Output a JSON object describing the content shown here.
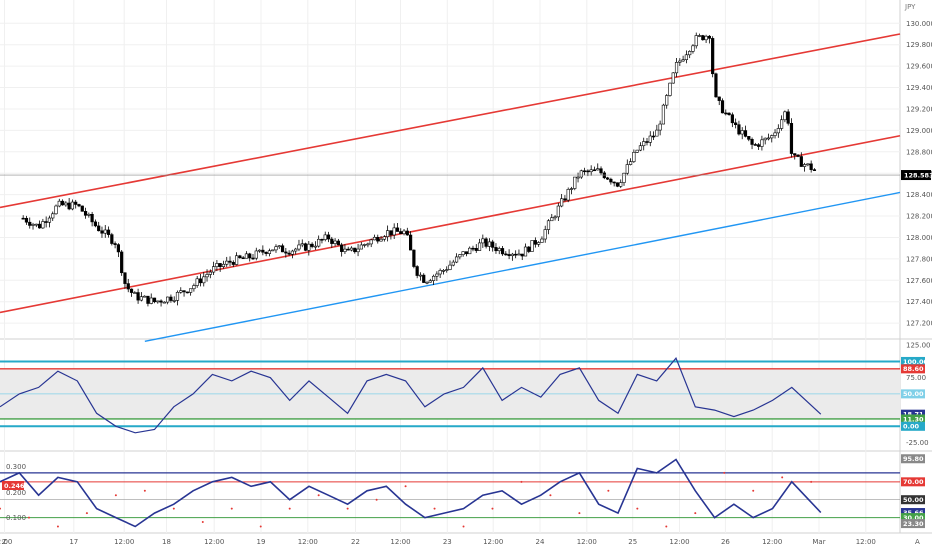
{
  "chart_data": {
    "type": "candlestick",
    "currency": "JPY",
    "colors": {
      "background": "#ffffff",
      "pane_bg": "#ebebeb",
      "candle_up": "#ffffff",
      "candle_down": "#000000",
      "wick": "#000000",
      "channel": "#e53935",
      "support": "#2196f3",
      "osc_line": "#283593",
      "band_cyan": "#26a9c8",
      "band_red": "#e53935",
      "band_green": "#43a047",
      "band_lightblue": "#80d0e8",
      "macd_dots": "#e53935",
      "grid": "#f0f0f0",
      "axis_text": "#555555",
      "price_badge": "#000000"
    },
    "price_pane": {
      "y_ticks": [
        "130.000",
        "129.800",
        "129.600",
        "129.400",
        "129.200",
        "129.000",
        "128.800",
        "128.600",
        "128.400",
        "128.200",
        "128.000",
        "127.800",
        "127.600",
        "127.400",
        "127.200"
      ],
      "ylim": [
        127.08,
        130.18
      ],
      "last_price": "128.583",
      "close_path": [
        [
          0,
          128.08
        ],
        [
          20,
          128.2
        ],
        [
          40,
          128.1
        ],
        [
          60,
          128.3
        ],
        [
          80,
          128.3
        ],
        [
          100,
          128.1
        ],
        [
          120,
          127.95
        ],
        [
          130,
          127.55
        ],
        [
          140,
          127.45
        ],
        [
          160,
          127.4
        ],
        [
          180,
          127.45
        ],
        [
          200,
          127.55
        ],
        [
          220,
          127.7
        ],
        [
          240,
          127.78
        ],
        [
          260,
          127.82
        ],
        [
          280,
          127.9
        ],
        [
          300,
          127.88
        ],
        [
          320,
          127.92
        ],
        [
          340,
          128.0
        ],
        [
          360,
          127.85
        ],
        [
          380,
          127.95
        ],
        [
          400,
          128.05
        ],
        [
          420,
          128.05
        ],
        [
          430,
          127.7
        ],
        [
          440,
          127.6
        ],
        [
          460,
          127.7
        ],
        [
          480,
          127.85
        ],
        [
          500,
          127.95
        ],
        [
          520,
          127.88
        ],
        [
          540,
          127.85
        ],
        [
          560,
          128.0
        ],
        [
          580,
          128.3
        ],
        [
          600,
          128.6
        ],
        [
          620,
          128.62
        ],
        [
          640,
          128.5
        ],
        [
          660,
          128.82
        ],
        [
          680,
          128.98
        ],
        [
          700,
          129.6
        ],
        [
          720,
          129.85
        ],
        [
          735,
          129.9
        ],
        [
          740,
          129.3
        ],
        [
          760,
          129.05
        ],
        [
          780,
          128.85
        ],
        [
          800,
          128.95
        ],
        [
          815,
          129.2
        ],
        [
          820,
          128.75
        ],
        [
          840,
          128.65
        ],
        [
          850,
          128.58
        ]
      ],
      "channel_upper": [
        [
          0,
          128.28
        ],
        [
          932,
          129.9
        ]
      ],
      "channel_lower": [
        [
          0,
          127.3
        ],
        [
          932,
          128.95
        ]
      ],
      "support_line": [
        [
          150,
          127.03
        ],
        [
          932,
          128.42
        ]
      ]
    },
    "rsi_pane": {
      "y_ticks": [
        "125.00",
        "75.00",
        "-25.00"
      ],
      "ylim": [
        -35,
        130
      ],
      "levels": {
        "upper_cyan": 100.0,
        "upper_red": 88.6,
        "mid": 50.0,
        "lower_green": 11.3,
        "lower_cyan": 0.0
      },
      "badges": [
        {
          "label": "100.00",
          "value": 100.0
        },
        {
          "label": "88.60",
          "value": 88.6
        },
        {
          "label": "50.00",
          "value": 50.0
        },
        {
          "label": "18.71",
          "value": 18.71
        },
        {
          "label": "11.30",
          "value": 11.3
        },
        {
          "label": "0.00",
          "value": 0.0
        }
      ],
      "line": [
        [
          0,
          30
        ],
        [
          20,
          50
        ],
        [
          40,
          60
        ],
        [
          60,
          85
        ],
        [
          80,
          70
        ],
        [
          100,
          20
        ],
        [
          120,
          0
        ],
        [
          140,
          -10
        ],
        [
          160,
          -5
        ],
        [
          180,
          30
        ],
        [
          200,
          50
        ],
        [
          220,
          80
        ],
        [
          240,
          70
        ],
        [
          260,
          85
        ],
        [
          280,
          75
        ],
        [
          300,
          40
        ],
        [
          320,
          70
        ],
        [
          340,
          45
        ],
        [
          360,
          20
        ],
        [
          380,
          70
        ],
        [
          400,
          80
        ],
        [
          420,
          70
        ],
        [
          440,
          30
        ],
        [
          460,
          50
        ],
        [
          480,
          60
        ],
        [
          500,
          90
        ],
        [
          520,
          40
        ],
        [
          540,
          60
        ],
        [
          560,
          45
        ],
        [
          580,
          80
        ],
        [
          600,
          90
        ],
        [
          620,
          40
        ],
        [
          640,
          20
        ],
        [
          660,
          80
        ],
        [
          680,
          70
        ],
        [
          700,
          105
        ],
        [
          720,
          30
        ],
        [
          740,
          25
        ],
        [
          760,
          15
        ],
        [
          780,
          25
        ],
        [
          800,
          40
        ],
        [
          820,
          60
        ],
        [
          850,
          18.7
        ]
      ]
    },
    "macd_pane": {
      "y_ticks": [
        "0.300",
        "0.200",
        "0.100"
      ],
      "ylim": [
        0.0,
        0.36
      ],
      "value": "0.246",
      "levels": {
        "upper_red": 70.0,
        "blue": 80.0,
        "gray": 50.0,
        "green": 30.0
      },
      "badges": [
        {
          "label": "95.80",
          "value": 95.8
        },
        {
          "label": "70.00",
          "value": 70.0
        },
        {
          "label": "50.00",
          "value": 50.0
        },
        {
          "label": "35.66",
          "value": 35.66
        },
        {
          "label": "30.00",
          "value": 30.0
        },
        {
          "label": "23.30",
          "value": 23.3
        }
      ],
      "line": [
        [
          0,
          70
        ],
        [
          20,
          80
        ],
        [
          40,
          55
        ],
        [
          60,
          75
        ],
        [
          80,
          70
        ],
        [
          100,
          40
        ],
        [
          120,
          30
        ],
        [
          140,
          20
        ],
        [
          160,
          35
        ],
        [
          180,
          45
        ],
        [
          200,
          60
        ],
        [
          220,
          70
        ],
        [
          240,
          75
        ],
        [
          260,
          65
        ],
        [
          280,
          70
        ],
        [
          300,
          50
        ],
        [
          320,
          65
        ],
        [
          340,
          55
        ],
        [
          360,
          45
        ],
        [
          380,
          60
        ],
        [
          400,
          65
        ],
        [
          420,
          45
        ],
        [
          440,
          30
        ],
        [
          460,
          35
        ],
        [
          480,
          40
        ],
        [
          500,
          55
        ],
        [
          520,
          60
        ],
        [
          540,
          45
        ],
        [
          560,
          55
        ],
        [
          580,
          70
        ],
        [
          600,
          80
        ],
        [
          620,
          45
        ],
        [
          640,
          35
        ],
        [
          660,
          85
        ],
        [
          680,
          80
        ],
        [
          700,
          95
        ],
        [
          720,
          60
        ],
        [
          740,
          30
        ],
        [
          760,
          45
        ],
        [
          780,
          30
        ],
        [
          800,
          40
        ],
        [
          820,
          70
        ],
        [
          850,
          35.7
        ]
      ],
      "dots": [
        [
          0,
          40
        ],
        [
          30,
          30
        ],
        [
          60,
          20
        ],
        [
          90,
          35
        ],
        [
          120,
          55
        ],
        [
          150,
          60
        ],
        [
          180,
          40
        ],
        [
          210,
          25
        ],
        [
          240,
          40
        ],
        [
          270,
          20
        ],
        [
          300,
          40
        ],
        [
          330,
          55
        ],
        [
          360,
          40
        ],
        [
          390,
          50
        ],
        [
          420,
          65
        ],
        [
          450,
          40
        ],
        [
          480,
          20
        ],
        [
          510,
          40
        ],
        [
          540,
          70
        ],
        [
          570,
          55
        ],
        [
          600,
          35
        ],
        [
          630,
          60
        ],
        [
          660,
          40
        ],
        [
          690,
          20
        ],
        [
          720,
          35
        ],
        [
          750,
          80
        ],
        [
          780,
          60
        ],
        [
          810,
          75
        ],
        [
          840,
          70
        ]
      ]
    },
    "x_ticks": [
      {
        "label": "2:00",
        "x": 0.005
      },
      {
        "label": "17",
        "x": 0.082
      },
      {
        "label": "12:00",
        "x": 0.138
      },
      {
        "label": "18",
        "x": 0.185
      },
      {
        "label": "12:00",
        "x": 0.238
      },
      {
        "label": "19",
        "x": 0.29
      },
      {
        "label": "12:00",
        "x": 0.342
      },
      {
        "label": "22",
        "x": 0.395
      },
      {
        "label": "12:00",
        "x": 0.445
      },
      {
        "label": "23",
        "x": 0.497
      },
      {
        "label": "12:00",
        "x": 0.548
      },
      {
        "label": "24",
        "x": 0.6
      },
      {
        "label": "12:00",
        "x": 0.652
      },
      {
        "label": "25",
        "x": 0.703
      },
      {
        "label": "12:00",
        "x": 0.755
      },
      {
        "label": "26",
        "x": 0.806
      },
      {
        "label": "12:00",
        "x": 0.858
      },
      {
        "label": "Mar",
        "x": 0.91
      },
      {
        "label": "12:00",
        "x": 0.962
      }
    ],
    "axis_letters": [
      "Z",
      "A"
    ]
  }
}
